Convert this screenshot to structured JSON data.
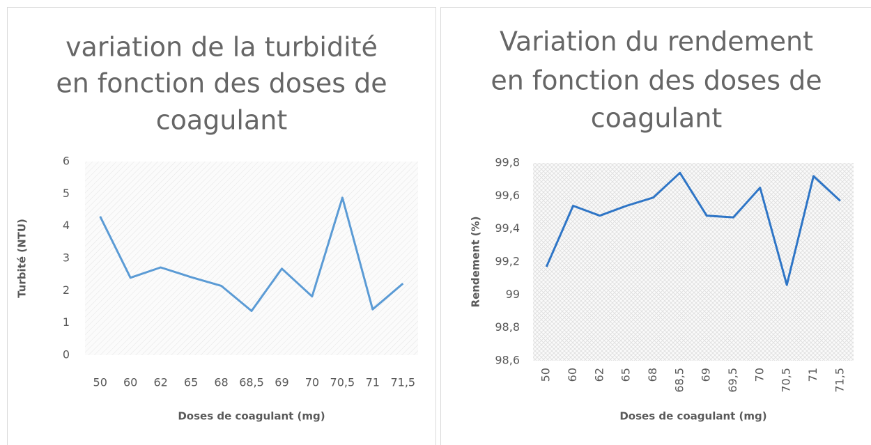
{
  "chart_data": [
    {
      "type": "line",
      "title": [
        "variation de la turbidité",
        "en fonction des doses de",
        "coagulant"
      ],
      "x_label": "Doses de coagulant (mg)",
      "y_label": "Turbité (NTU)",
      "categories": [
        "50",
        "60",
        "62",
        "65",
        "68",
        "68,5",
        "69",
        "70",
        "70,5",
        "71",
        "71,5"
      ],
      "values": [
        4.3,
        2.4,
        2.72,
        2.42,
        2.15,
        1.37,
        2.68,
        1.82,
        4.88,
        1.42,
        2.22
      ],
      "color": "#5b9bd5",
      "ylim": [
        0,
        6
      ],
      "yticks": [
        0,
        1,
        2,
        3,
        4,
        5,
        6
      ],
      "x_label_rotation": 0
    },
    {
      "type": "line",
      "title": [
        "Variation du rendement",
        "en fonction des doses de",
        "coagulant"
      ],
      "x_label": "Doses de coagulant (mg)",
      "y_label": "Rendement (%)",
      "categories": [
        "50",
        "60",
        "62",
        "65",
        "68",
        "68,5",
        "69",
        "69,5",
        "70",
        "70,5",
        "71",
        "71,5"
      ],
      "values": [
        99.17,
        99.54,
        99.48,
        99.54,
        99.59,
        99.74,
        99.48,
        99.47,
        99.65,
        99.06,
        99.72,
        99.57
      ],
      "color": "#2e75c6",
      "ylim": [
        98.6,
        99.8
      ],
      "yticks": [
        {
          "value": 98.6,
          "label": "98,6"
        },
        {
          "value": 98.8,
          "label": "98,8"
        },
        99,
        {
          "value": 99.2,
          "label": "99,2"
        },
        {
          "value": 99.4,
          "label": "99,4"
        },
        {
          "value": 99.6,
          "label": "99,6"
        },
        {
          "value": 99.8,
          "label": "99,8"
        }
      ],
      "x_label_rotation": -90
    }
  ]
}
